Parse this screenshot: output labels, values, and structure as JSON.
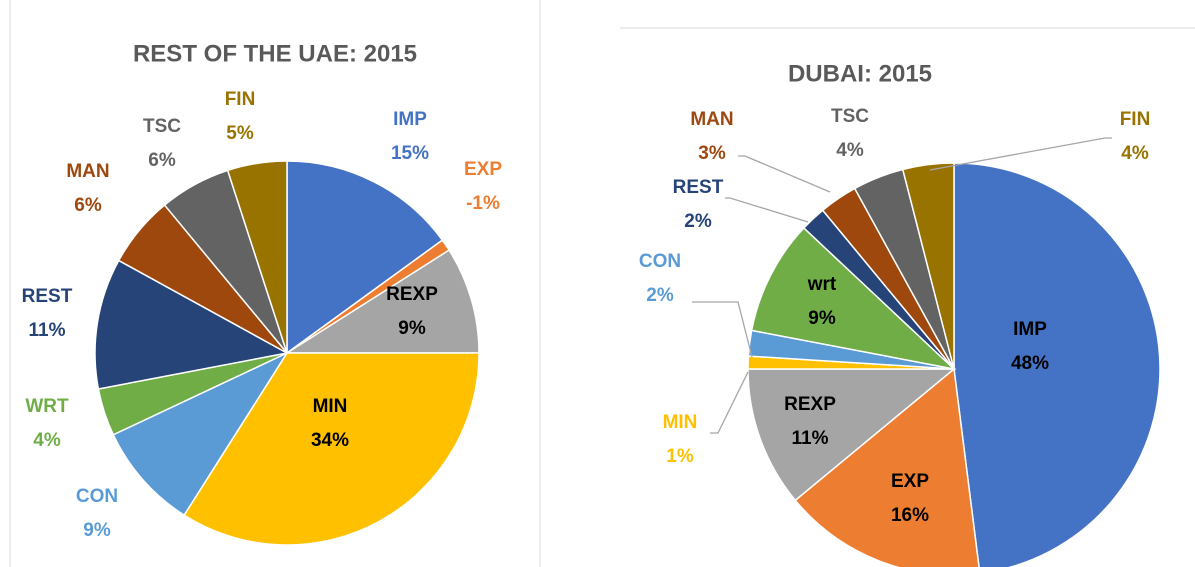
{
  "chart_data": [
    {
      "type": "pie",
      "title": "REST OF THE UAE: 2015",
      "categories": [
        "IMP",
        "EXP",
        "REXP",
        "MIN",
        "CON",
        "WRT",
        "REST",
        "MAN",
        "TSC",
        "FIN"
      ],
      "values": [
        15,
        -1,
        9,
        34,
        9,
        4,
        11,
        6,
        6,
        5
      ],
      "value_labels": [
        "15%",
        "-1%",
        "9%",
        "34%",
        "9%",
        "4%",
        "11%",
        "6%",
        "6%",
        "5%"
      ],
      "colors": [
        "#4472c4",
        "#ed7d31",
        "#a5a5a5",
        "#ffc000",
        "#5b9bd5",
        "#70ad47",
        "#264478",
        "#9e480e",
        "#636363",
        "#997300"
      ]
    },
    {
      "type": "pie",
      "title": "DUBAI: 2015",
      "categories": [
        "IMP",
        "EXP",
        "REXP",
        "MIN",
        "CON",
        "wrt",
        "REST",
        "MAN",
        "TSC",
        "FIN"
      ],
      "values": [
        48,
        16,
        11,
        1,
        2,
        9,
        2,
        3,
        4,
        4
      ],
      "value_labels": [
        "48%",
        "16%",
        "11%",
        "1%",
        "2%",
        "9%",
        "2%",
        "3%",
        "4%",
        "4%"
      ],
      "colors": [
        "#4472c4",
        "#ed7d31",
        "#a5a5a5",
        "#ffc000",
        "#5b9bd5",
        "#70ad47",
        "#264478",
        "#9e480e",
        "#636363",
        "#997300"
      ]
    }
  ]
}
